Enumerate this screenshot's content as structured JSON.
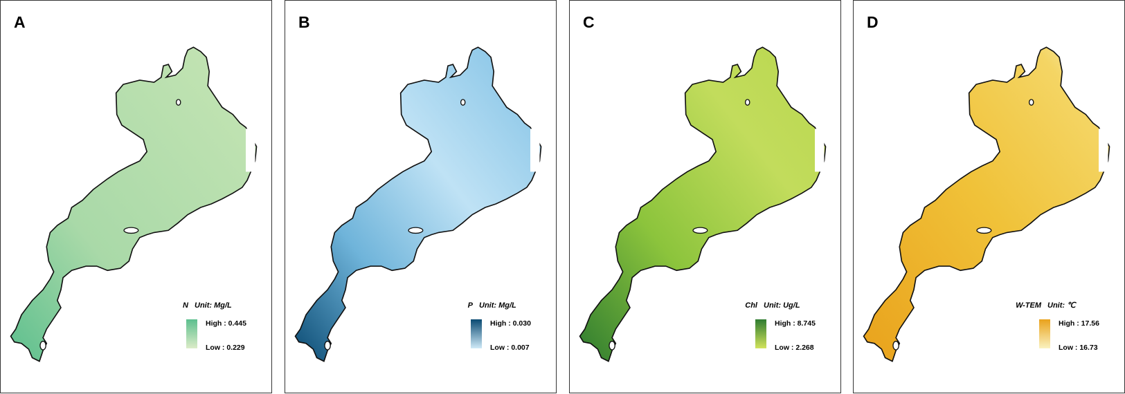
{
  "panels": [
    {
      "label": "A",
      "variable": "N",
      "unit": "Unit: Mg/L",
      "high": "High : 0.445",
      "low": "Low : 0.229"
    },
    {
      "label": "B",
      "variable": "P",
      "unit": "Unit: Mg/L",
      "high": "High : 0.030",
      "low": "Low : 0.007"
    },
    {
      "label": "C",
      "variable": "Chl",
      "unit": "Unit: Ug/L",
      "high": "High : 8.745",
      "low": "Low : 2.268"
    },
    {
      "label": "D",
      "variable": "W-TEM",
      "unit": "Unit: ℃",
      "high": "High : 17.56",
      "low": "Low : 16.73"
    }
  ]
}
